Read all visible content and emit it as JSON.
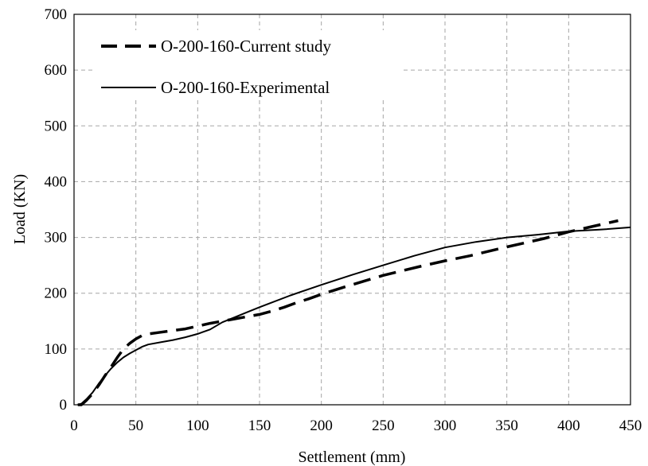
{
  "chart_data": {
    "type": "line",
    "title": "",
    "xlabel": "Settlement (mm)",
    "ylabel": "Load (KN)",
    "xlim": [
      0,
      450
    ],
    "ylim": [
      0,
      700
    ],
    "xticks": [
      0,
      50,
      100,
      150,
      200,
      250,
      300,
      350,
      400,
      450
    ],
    "yticks": [
      0,
      100,
      200,
      300,
      400,
      500,
      600,
      700
    ],
    "grid": true,
    "legend_position": "top-left",
    "series": [
      {
        "name": "O-200-160-Current study",
        "style": "dashed",
        "color": "#000000",
        "points": [
          [
            3,
            0
          ],
          [
            6,
            0
          ],
          [
            10,
            8
          ],
          [
            15,
            20
          ],
          [
            20,
            35
          ],
          [
            25,
            52
          ],
          [
            30,
            68
          ],
          [
            35,
            85
          ],
          [
            40,
            100
          ],
          [
            45,
            110
          ],
          [
            50,
            118
          ],
          [
            55,
            124
          ],
          [
            60,
            127
          ],
          [
            70,
            130
          ],
          [
            80,
            133
          ],
          [
            90,
            136
          ],
          [
            100,
            141
          ],
          [
            110,
            146
          ],
          [
            120,
            150
          ],
          [
            130,
            154
          ],
          [
            140,
            158
          ],
          [
            150,
            162
          ],
          [
            160,
            168
          ],
          [
            170,
            175
          ],
          [
            180,
            183
          ],
          [
            190,
            190
          ],
          [
            200,
            198
          ],
          [
            220,
            212
          ],
          [
            250,
            232
          ],
          [
            280,
            248
          ],
          [
            300,
            258
          ],
          [
            320,
            267
          ],
          [
            350,
            283
          ],
          [
            380,
            298
          ],
          [
            400,
            310
          ],
          [
            420,
            320
          ],
          [
            440,
            330
          ]
        ]
      },
      {
        "name": "O-200-160-Experimental",
        "style": "solid",
        "color": "#000000",
        "points": [
          [
            3,
            0
          ],
          [
            6,
            2
          ],
          [
            10,
            10
          ],
          [
            15,
            22
          ],
          [
            20,
            38
          ],
          [
            25,
            52
          ],
          [
            30,
            65
          ],
          [
            35,
            76
          ],
          [
            40,
            85
          ],
          [
            45,
            92
          ],
          [
            50,
            98
          ],
          [
            55,
            104
          ],
          [
            60,
            108
          ],
          [
            70,
            112
          ],
          [
            80,
            116
          ],
          [
            90,
            121
          ],
          [
            100,
            127
          ],
          [
            110,
            135
          ],
          [
            120,
            148
          ],
          [
            130,
            157
          ],
          [
            140,
            166
          ],
          [
            150,
            175
          ],
          [
            175,
            196
          ],
          [
            200,
            215
          ],
          [
            225,
            233
          ],
          [
            250,
            250
          ],
          [
            275,
            267
          ],
          [
            300,
            282
          ],
          [
            325,
            292
          ],
          [
            350,
            300
          ],
          [
            375,
            305
          ],
          [
            400,
            311
          ],
          [
            425,
            314
          ],
          [
            450,
            318
          ]
        ]
      }
    ]
  }
}
